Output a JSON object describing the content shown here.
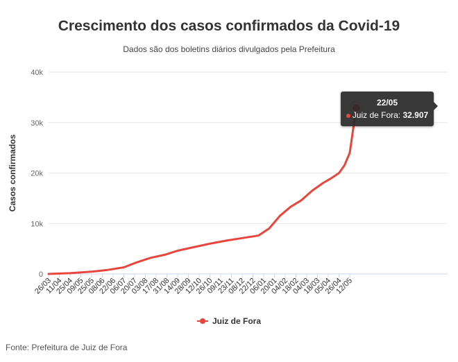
{
  "chart_data": {
    "type": "line",
    "title": "Crescimento dos casos confirmados da Covid-19",
    "subtitle": "Dados são dos boletins diários divulgados pela Prefeitura",
    "ylabel": "Casos confirmados",
    "xlabel": "",
    "ylim": [
      0,
      40000
    ],
    "y_ticks": [
      0,
      10000,
      20000,
      30000,
      40000
    ],
    "y_tick_labels": [
      "0",
      "10k",
      "20k",
      "30k",
      "40k"
    ],
    "x_tick_labels": [
      "26/03",
      "11/04",
      "25/04",
      "09/05",
      "25/05",
      "08/06",
      "22/06",
      "06/07",
      "20/07",
      "03/08",
      "17/08",
      "31/08",
      "14/09",
      "28/09",
      "12/10",
      "26/10",
      "09/11",
      "23/11",
      "08/12",
      "22/12",
      "06/01",
      "20/01",
      "04/02",
      "18/02",
      "04/03",
      "18/03",
      "05/04",
      "26/04",
      "12/05"
    ],
    "grid": true,
    "legend_position": "bottom-center",
    "series": [
      {
        "name": "Juiz de Fora",
        "color": "#e8453c",
        "x_index": [
          0,
          2,
          4,
          5.5,
          7,
          8.2,
          9.5,
          10.8,
          12,
          13.5,
          15,
          16.5,
          18,
          19.5,
          20.5,
          21.5,
          22.5,
          23.5,
          24.5,
          25.5,
          26.3,
          27,
          27.5,
          28,
          28.6
        ],
        "values": [
          0,
          150,
          450,
          800,
          1300,
          2300,
          3200,
          3800,
          4600,
          5300,
          6000,
          6600,
          7100,
          7600,
          9000,
          11500,
          13300,
          14600,
          16500,
          18000,
          19000,
          20000,
          21500,
          24000,
          32907
        ]
      }
    ]
  },
  "tooltip": {
    "date": "22/05",
    "series_label": "Juiz de Fora:",
    "value_label": "32.907"
  },
  "source": "Fonte: Prefeitura de Juiz de Fora"
}
